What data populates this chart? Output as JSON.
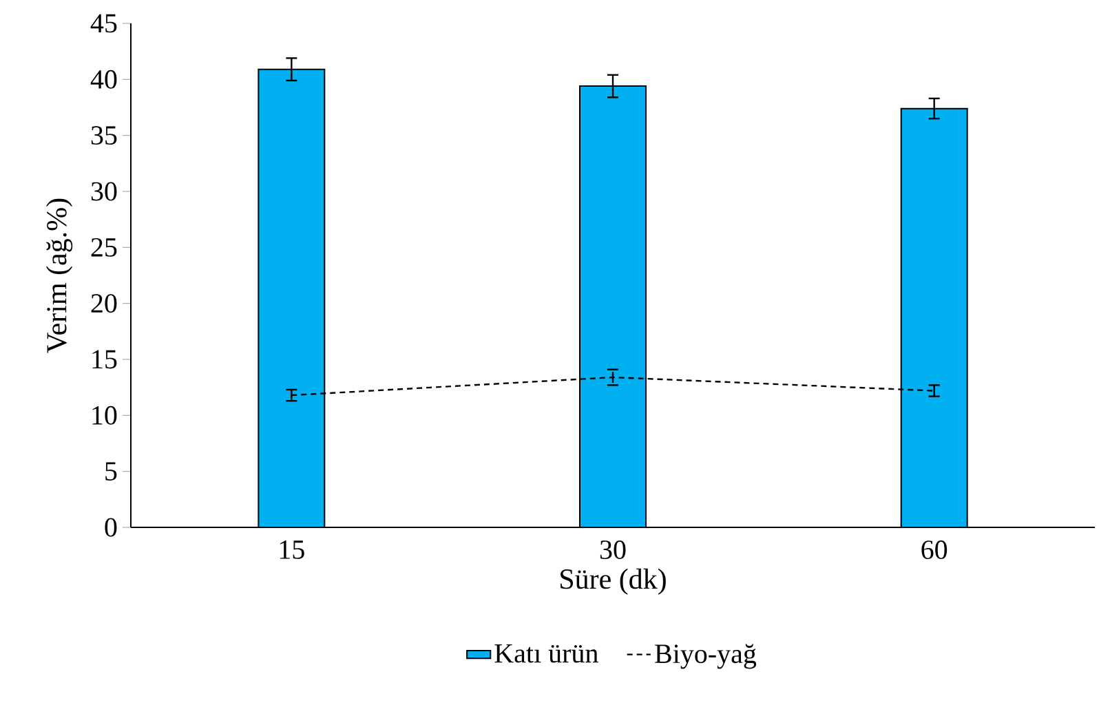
{
  "chart_data": {
    "type": "bar",
    "xlabel": "Süre (dk)",
    "ylabel": "Verim (ağ.%)",
    "categories": [
      "15",
      "30",
      "60"
    ],
    "series": [
      {
        "name": "Katı ürün",
        "color": "#00b0f0",
        "values": [
          40.9,
          39.4,
          37.4
        ],
        "errors": [
          1.0,
          1.0,
          0.9
        ]
      },
      {
        "name": "Biyo-yağ",
        "type": "line",
        "color": "#000000",
        "line_style": "dashed",
        "marker": "none",
        "values": [
          11.8,
          13.4,
          12.2
        ],
        "errors": [
          0.5,
          0.7,
          0.5
        ]
      }
    ],
    "ylim": [
      0,
      45
    ],
    "yticks": [
      0,
      5,
      10,
      15,
      20,
      25,
      30,
      35,
      40,
      45
    ],
    "grid": false,
    "legend": "bottom"
  }
}
